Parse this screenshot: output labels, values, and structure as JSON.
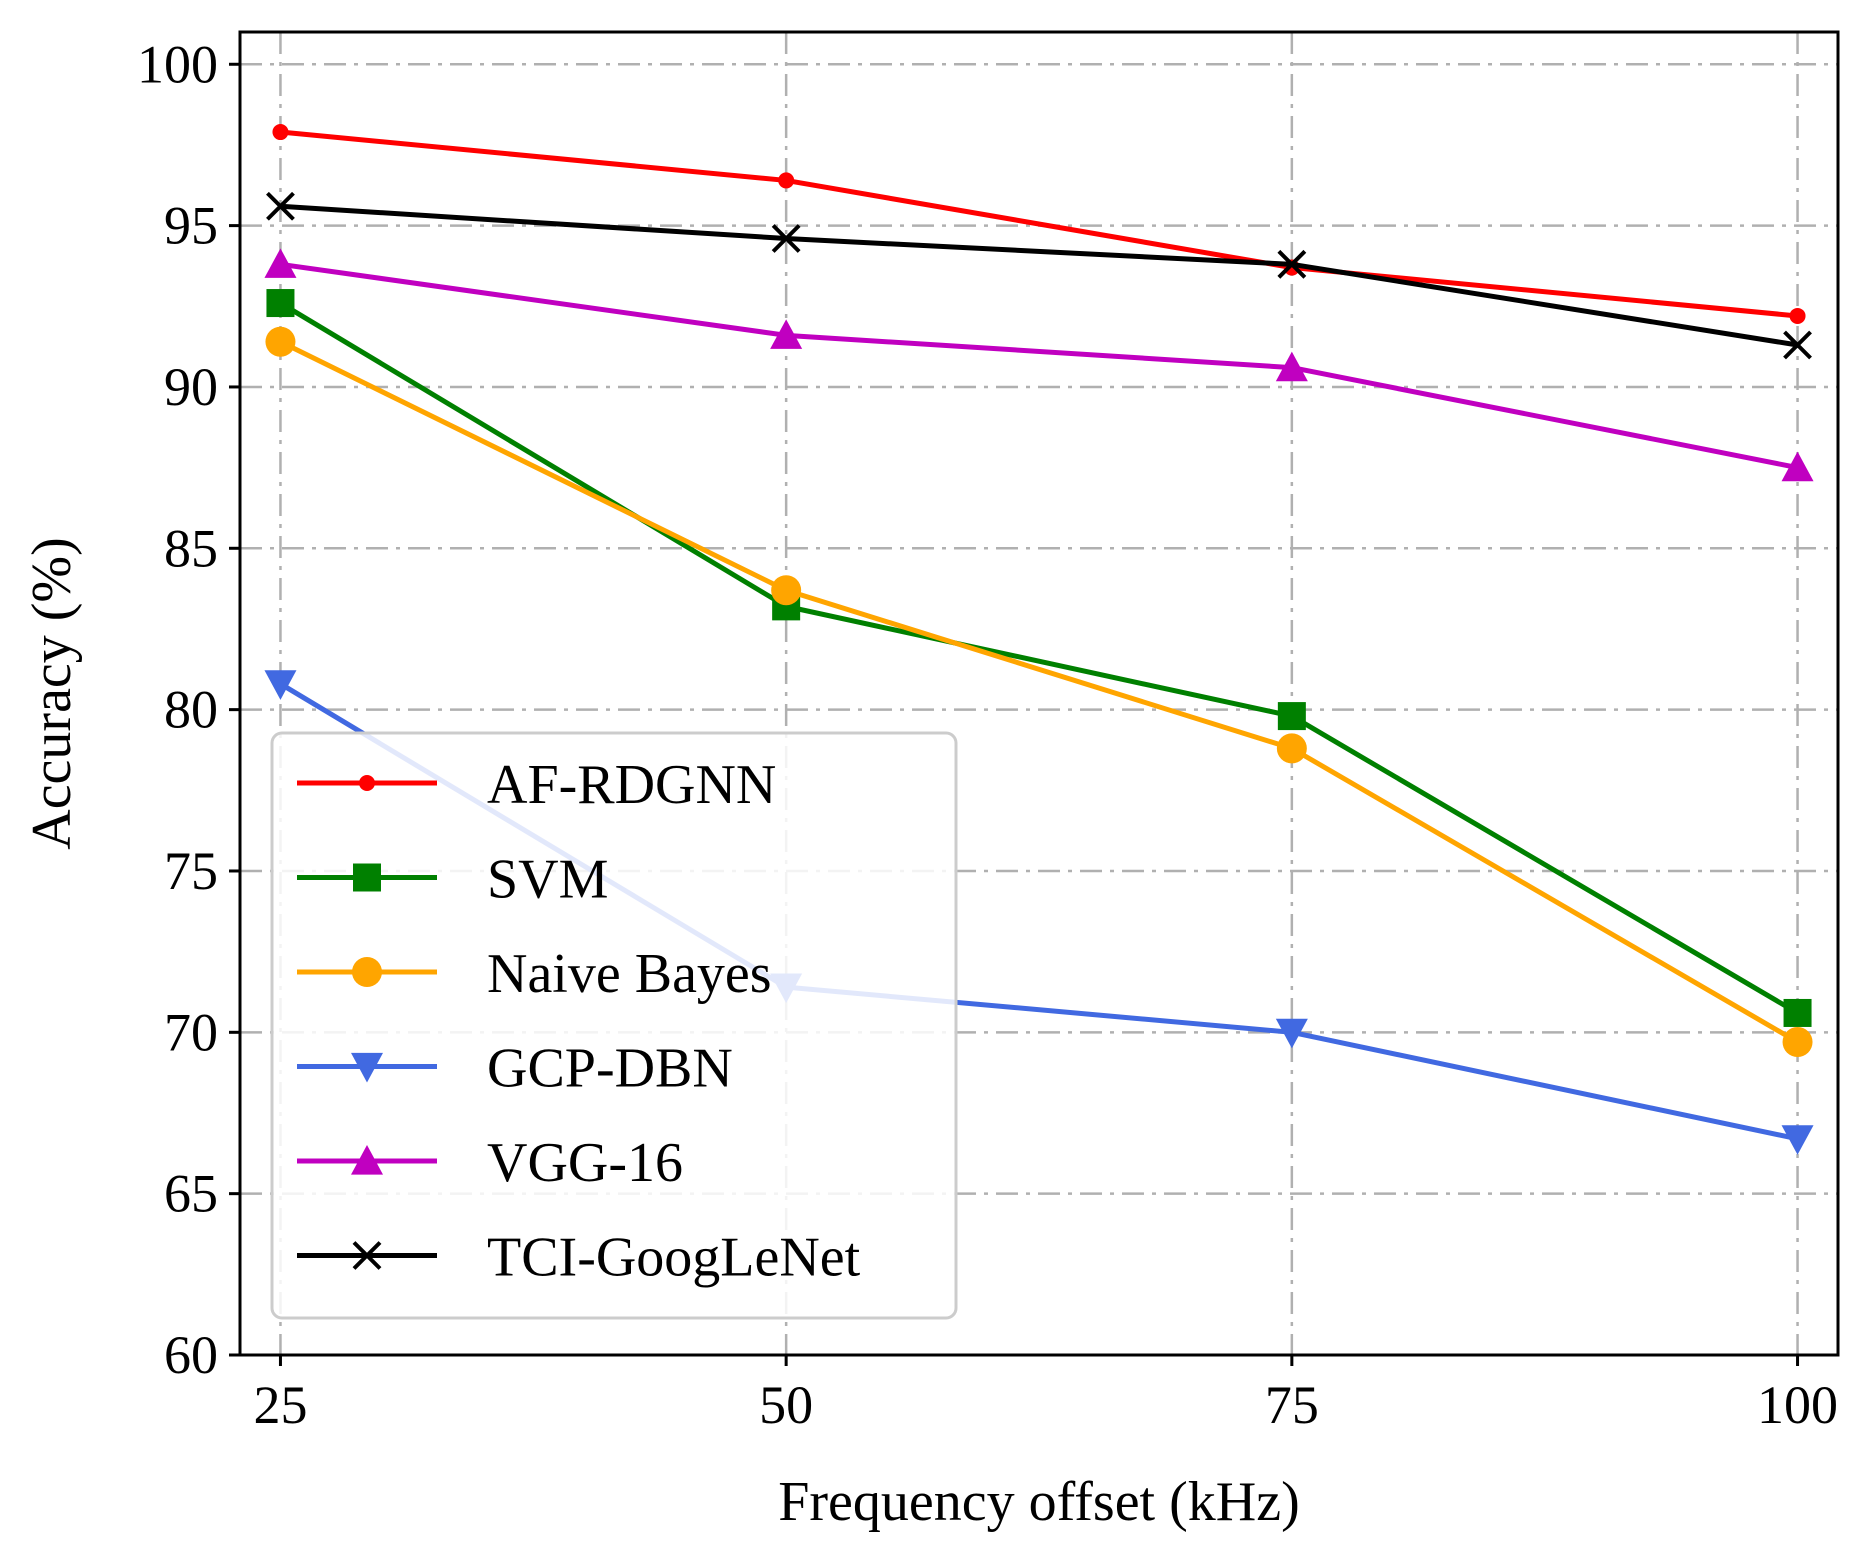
{
  "chart_data": {
    "type": "line",
    "title": "",
    "xlabel": "Frequency offset (kHz)",
    "ylabel": "Accuracy (%)",
    "x": [
      25,
      50,
      75,
      100
    ],
    "xticks": [
      "25",
      "50",
      "75",
      "100"
    ],
    "yticks": [
      "60",
      "65",
      "70",
      "75",
      "80",
      "85",
      "90",
      "95",
      "100"
    ],
    "xlim": [
      23,
      102
    ],
    "ylim": [
      60,
      101
    ],
    "grid": true,
    "legend_position": "lower-left",
    "series": [
      {
        "name": "AF-RDGNN",
        "color": "#ff0000",
        "marker": "dot",
        "values": [
          97.9,
          96.4,
          93.7,
          92.2
        ]
      },
      {
        "name": "SVM",
        "color": "#008000",
        "marker": "square",
        "values": [
          92.6,
          83.2,
          79.8,
          70.6
        ]
      },
      {
        "name": "Naive Bayes",
        "color": "#ffa500",
        "marker": "circle",
        "values": [
          91.4,
          83.7,
          78.8,
          69.7
        ]
      },
      {
        "name": "GCP-DBN",
        "color": "#4169e1",
        "marker": "triangle-down",
        "values": [
          80.8,
          71.4,
          70.0,
          66.7
        ]
      },
      {
        "name": "VGG-16",
        "color": "#c000c0",
        "marker": "triangle-up",
        "values": [
          93.8,
          91.6,
          90.6,
          87.5
        ]
      },
      {
        "name": "TCI-GoogLeNet",
        "color": "#000000",
        "marker": "x",
        "values": [
          95.6,
          94.6,
          93.8,
          91.3
        ]
      }
    ]
  }
}
